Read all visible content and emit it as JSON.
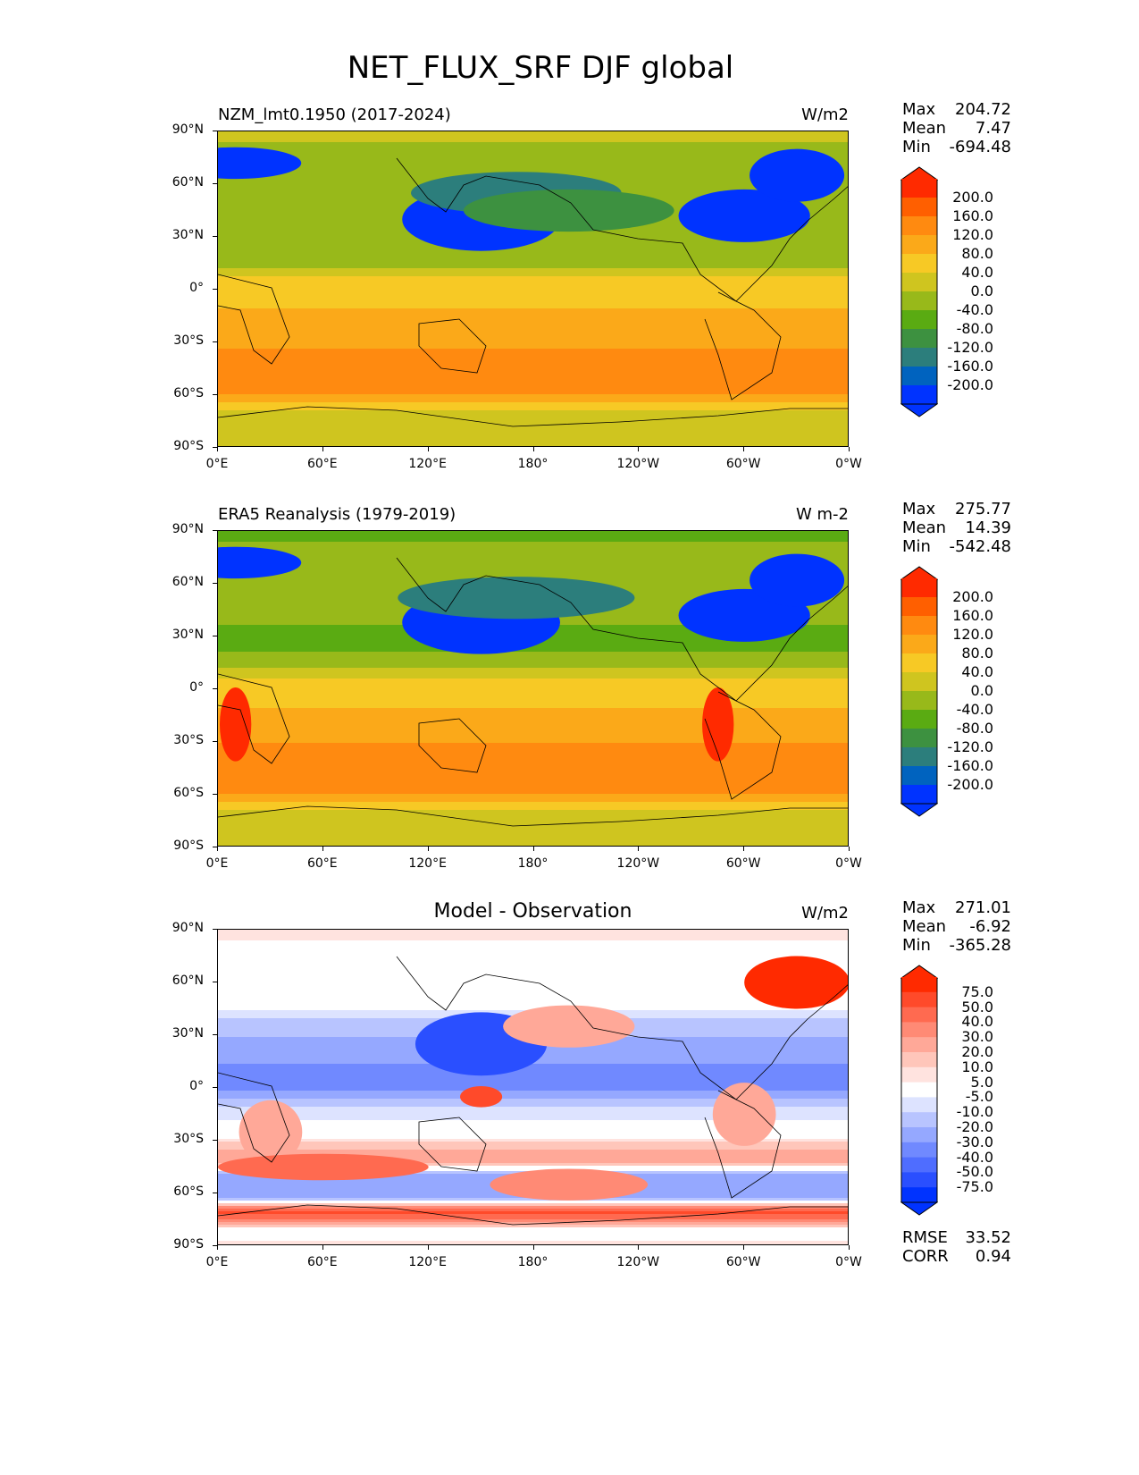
{
  "title": "NET_FLUX_SRF DJF global",
  "chart_data": [
    {
      "type": "heatmap",
      "title": "NZM_lmt0.1950 (2017-2024)",
      "units": "W/m2",
      "stats": {
        "max": "204.72",
        "mean": "7.47",
        "min": "-694.48"
      },
      "colorbar": {
        "levels": [
          "200.0",
          "160.0",
          "120.0",
          "80.0",
          "40.0",
          "0.0",
          "-40.0",
          "-80.0",
          "-120.0",
          "-160.0",
          "-200.0"
        ],
        "colors": [
          "#ff2a00",
          "#ff5f00",
          "#ff8a10",
          "#fba919",
          "#f7c925",
          "#cfc51f",
          "#98b91a",
          "#5aab12",
          "#3d9140",
          "#2c7e7c",
          "#0063bf",
          "#0033ff"
        ]
      },
      "zonal": [
        [
          90,
          20
        ],
        [
          75,
          -40
        ],
        [
          60,
          -20
        ],
        [
          45,
          -20
        ],
        [
          30,
          -40
        ],
        [
          15,
          -10
        ],
        [
          5,
          60
        ],
        [
          -10,
          80
        ],
        [
          -25,
          100
        ],
        [
          -40,
          140
        ],
        [
          -55,
          160
        ],
        [
          -65,
          60
        ],
        [
          -72,
          20
        ],
        [
          -90,
          20
        ]
      ],
      "features": [
        [
          150,
          40,
          -220,
          30,
          12
        ],
        [
          300,
          42,
          -220,
          25,
          10
        ],
        [
          170,
          55,
          -130,
          40,
          8
        ],
        [
          10,
          72,
          -220,
          25,
          6
        ],
        [
          330,
          65,
          -200,
          18,
          10
        ],
        [
          200,
          45,
          -100,
          40,
          8
        ]
      ]
    },
    {
      "type": "heatmap",
      "title": "ERA5 Reanalysis (1979-2019)",
      "units": "W m-2",
      "stats": {
        "max": "275.77",
        "mean": "14.39",
        "min": "-542.48"
      },
      "colorbar": {
        "levels": [
          "200.0",
          "160.0",
          "120.0",
          "80.0",
          "40.0",
          "0.0",
          "-40.0",
          "-80.0",
          "-120.0",
          "-160.0",
          "-200.0"
        ],
        "colors": [
          "#ff2a00",
          "#ff5f00",
          "#ff8a10",
          "#fba919",
          "#f7c925",
          "#cfc51f",
          "#98b91a",
          "#5aab12",
          "#3d9140",
          "#2c7e7c",
          "#0063bf",
          "#0033ff"
        ]
      },
      "zonal": [
        [
          90,
          -50
        ],
        [
          75,
          -20
        ],
        [
          60,
          -20
        ],
        [
          45,
          -20
        ],
        [
          30,
          -60
        ],
        [
          15,
          -20
        ],
        [
          5,
          60
        ],
        [
          -10,
          80
        ],
        [
          -25,
          110
        ],
        [
          -40,
          140
        ],
        [
          -55,
          150
        ],
        [
          -65,
          60
        ],
        [
          -72,
          20
        ],
        [
          -90,
          20
        ]
      ],
      "features": [
        [
          150,
          38,
          -220,
          30,
          12
        ],
        [
          300,
          42,
          -220,
          25,
          10
        ],
        [
          170,
          52,
          -150,
          45,
          8
        ],
        [
          10,
          72,
          -220,
          25,
          6
        ],
        [
          330,
          62,
          -200,
          18,
          10
        ],
        [
          10,
          -20,
          220,
          6,
          14
        ],
        [
          285,
          -20,
          220,
          6,
          14
        ]
      ]
    },
    {
      "type": "heatmap",
      "title": "Model - Observation",
      "units": "W/m2",
      "stats": {
        "max": "271.01",
        "mean": "-6.92",
        "min": "-365.28"
      },
      "rmse": "33.52",
      "corr": "0.94",
      "colorbar": {
        "levels": [
          "75.0",
          "50.0",
          "40.0",
          "30.0",
          "20.0",
          "10.0",
          "5.0",
          "-5.0",
          "-10.0",
          "-20.0",
          "-30.0",
          "-40.0",
          "-50.0",
          "-75.0"
        ],
        "colors": [
          "#ff2a00",
          "#ff4a2a",
          "#ff6a50",
          "#ff8a75",
          "#ffa898",
          "#ffc6ba",
          "#ffe3df",
          "#ffffff",
          "#dde3ff",
          "#b8c4ff",
          "#95a8ff",
          "#7089ff",
          "#4f6dff",
          "#2a4fff",
          "#0033ff"
        ]
      },
      "zonal": [
        [
          90,
          8
        ],
        [
          75,
          0
        ],
        [
          60,
          0
        ],
        [
          45,
          -5
        ],
        [
          30,
          -20
        ],
        [
          15,
          -30
        ],
        [
          5,
          -40
        ],
        [
          -10,
          -10
        ],
        [
          -25,
          0
        ],
        [
          -40,
          30
        ],
        [
          -50,
          -30
        ],
        [
          -62,
          -20
        ],
        [
          -70,
          60
        ],
        [
          -80,
          0
        ],
        [
          -90,
          8
        ]
      ],
      "features": [
        [
          330,
          60,
          80,
          20,
          10
        ],
        [
          150,
          25,
          -60,
          25,
          12
        ],
        [
          200,
          35,
          30,
          25,
          8
        ],
        [
          30,
          -25,
          30,
          12,
          12
        ],
        [
          300,
          -15,
          30,
          12,
          12
        ],
        [
          150,
          -5,
          60,
          8,
          4
        ],
        [
          60,
          -45,
          50,
          40,
          5
        ],
        [
          200,
          -55,
          40,
          30,
          6
        ]
      ]
    }
  ],
  "labels": {
    "lat": [
      "90°N",
      "60°N",
      "30°N",
      "0°",
      "30°S",
      "60°S",
      "90°S"
    ],
    "lon": [
      "0°E",
      "60°E",
      "120°E",
      "180°",
      "120°W",
      "60°W",
      "0°W"
    ],
    "max": "Max",
    "mean": "Mean",
    "min": "Min",
    "rmse": "RMSE",
    "corr": "CORR"
  }
}
